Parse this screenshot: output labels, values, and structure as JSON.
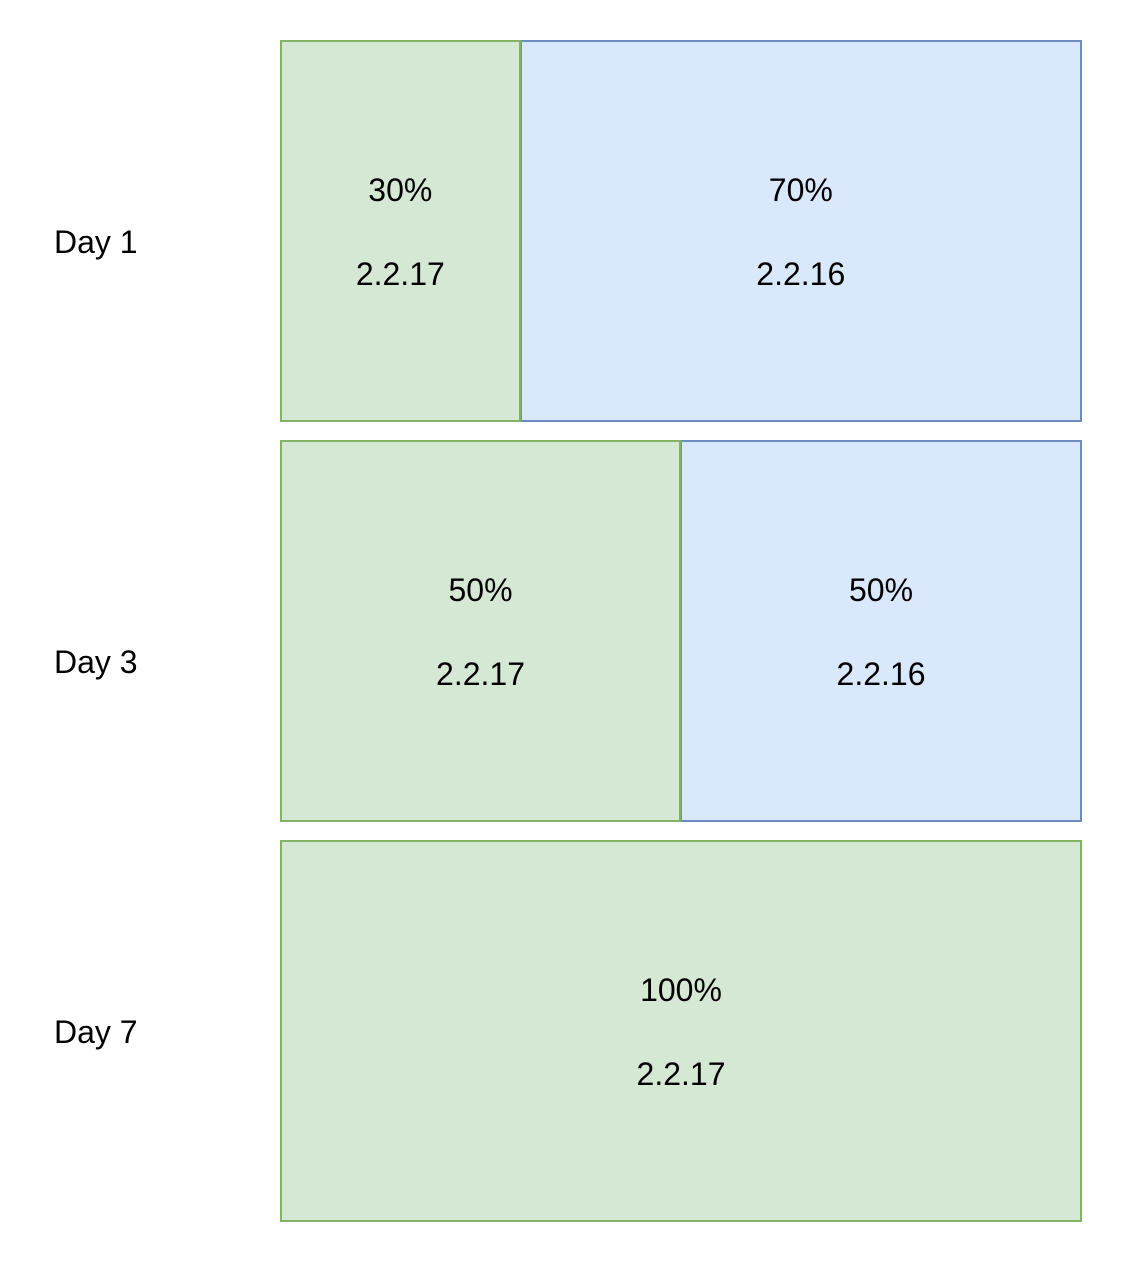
{
  "rows": [
    {
      "day": "Day 1",
      "segments": [
        {
          "percent": "30%",
          "version": "2.2.17",
          "share": 30,
          "color": "#d5e8d4",
          "border": "#82b366"
        },
        {
          "percent": "70%",
          "version": "2.2.16",
          "share": 70,
          "color": "#dae8fc",
          "border": "#6c8ebf"
        }
      ]
    },
    {
      "day": "Day 3",
      "segments": [
        {
          "percent": "50%",
          "version": "2.2.17",
          "share": 50,
          "color": "#d5e8d4",
          "border": "#82b366"
        },
        {
          "percent": "50%",
          "version": "2.2.16",
          "share": 50,
          "color": "#dae8fc",
          "border": "#6c8ebf"
        }
      ]
    },
    {
      "day": "Day 7",
      "segments": [
        {
          "percent": "100%",
          "version": "2.2.17",
          "share": 100,
          "color": "#d5e8d4",
          "border": "#82b366"
        }
      ]
    }
  ]
}
